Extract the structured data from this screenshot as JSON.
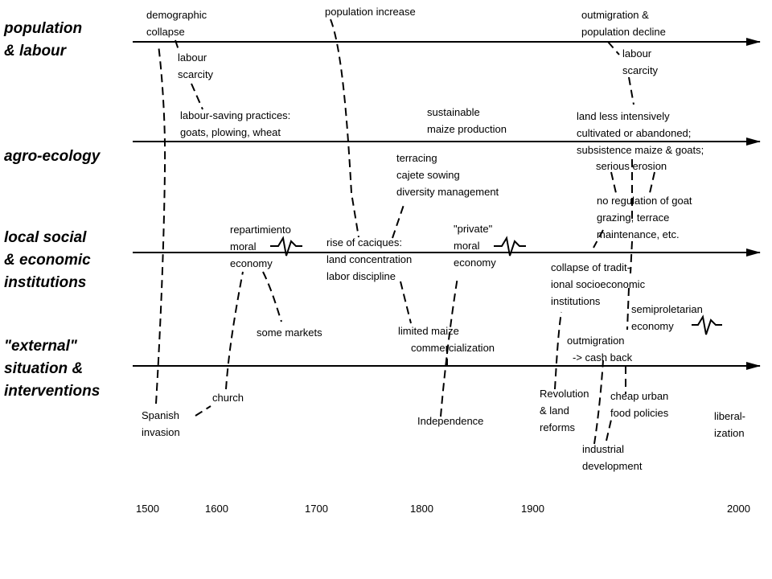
{
  "rows": [
    {
      "id": "population",
      "lines": [
        "population",
        "& labour"
      ]
    },
    {
      "id": "agro",
      "lines": [
        "agro-ecology"
      ]
    },
    {
      "id": "social",
      "lines": [
        "local social",
        "& economic",
        "institutions"
      ]
    },
    {
      "id": "external",
      "lines": [
        "\"external\"",
        "situation &",
        "interventions"
      ]
    }
  ],
  "annotations": {
    "demographic_collapse": [
      "demographic",
      "collapse"
    ],
    "labour_scarcity_1": [
      "labour",
      "scarcity"
    ],
    "labour_saving": [
      "labour-saving practices:",
      "goats, plowing, wheat"
    ],
    "population_increase": [
      "population increase"
    ],
    "sustainable_maize": [
      "sustainable",
      "maize production"
    ],
    "outmigration_decline": [
      "outmigration &",
      "population decline"
    ],
    "labour_scarcity_2": [
      "labour",
      "scarcity"
    ],
    "land_less": [
      "land less intensively",
      "cultivated or abandoned;",
      "subsistence maize & goats;"
    ],
    "serious_erosion": [
      "serious erosion"
    ],
    "terracing": [
      "terracing",
      "cajete sowing",
      "diversity management"
    ],
    "no_regulation": [
      "no regulation of goat",
      "grazing, terrace",
      "maintenance, etc."
    ],
    "repartimiento": [
      "repartimiento",
      "moral",
      "economy"
    ],
    "caciques": [
      "rise of caciques:",
      "land concentration",
      "labor discipline"
    ],
    "private_moral": [
      "\"private\"",
      "moral",
      "economy"
    ],
    "collapse_traditional": [
      "collapse of tradit-",
      "ional socioeconomic",
      "institutions"
    ],
    "some_markets": [
      "some markets"
    ],
    "limited_maize": [
      "limited maize"
    ],
    "commercialization": [
      "commercialization"
    ],
    "semiproletarian": [
      "semiproletarian",
      "economy"
    ],
    "outmigration_cash": [
      "outmigration"
    ],
    "cash_back": [
      "-> cash back"
    ],
    "church": [
      "church"
    ],
    "spanish_invasion": [
      "Spanish",
      "invasion"
    ],
    "independence": [
      "Independence"
    ],
    "revolution": [
      "Revolution",
      "& land",
      "reforms"
    ],
    "cheap_food": [
      "cheap urban",
      "food policies"
    ],
    "industrial": [
      "industrial",
      "development"
    ],
    "liberalization": [
      "liberal-",
      "ization"
    ]
  },
  "axis": {
    "ticks": [
      "1500",
      "1600",
      "1700",
      "1800",
      "1900",
      "2000"
    ]
  },
  "style": {
    "line_color": "#000000",
    "background": "#ffffff"
  }
}
